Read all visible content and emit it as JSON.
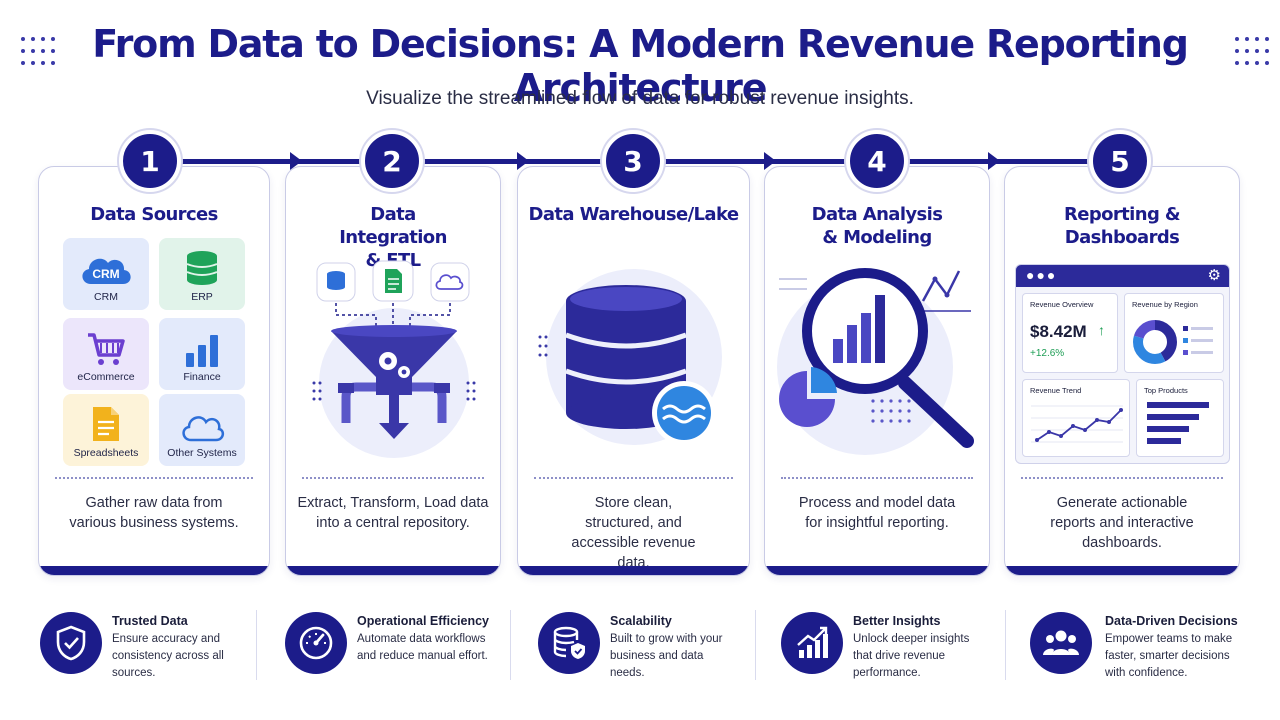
{
  "header": {
    "title": "From Data to Decisions: A Modern Revenue Reporting Architecture",
    "subtitle": "Visualize the streamlined flow of data for robust revenue insights."
  },
  "steps": [
    {
      "number": "1",
      "title": "Data Sources",
      "description": "Gather raw data from various business systems."
    },
    {
      "number": "2",
      "title": "Data Integration & ETL",
      "description": "Extract, Transform, Load data into a central repository."
    },
    {
      "number": "3",
      "title": "Data Warehouse/Lake",
      "description": "Store clean, structured, and accessible revenue data."
    },
    {
      "number": "4",
      "title": "Data Analysis & Modeling",
      "description": "Process and model data for insightful reporting."
    },
    {
      "number": "5",
      "title": "Reporting & Dashboards",
      "description": "Generate actionable reports and interactive dashboards."
    }
  ],
  "sources": {
    "crm_icon_text": "CRM",
    "tiles": [
      {
        "label": "CRM",
        "icon": "crm-cloud-icon"
      },
      {
        "label": "ERP",
        "icon": "database-icon"
      },
      {
        "label": "eCommerce",
        "icon": "shopping-cart-icon"
      },
      {
        "label": "Finance",
        "icon": "bar-chart-icon"
      },
      {
        "label": "Spreadsheets",
        "icon": "document-icon"
      },
      {
        "label": "Other Systems",
        "icon": "cloud-icon"
      }
    ]
  },
  "dashboard": {
    "revenue_overview": "Revenue Overview",
    "revenue_value": "$8.42M",
    "revenue_change": "+12.6%",
    "revenue_by_region": "Revenue by Region",
    "revenue_trend": "Revenue Trend",
    "top_products": "Top Products"
  },
  "benefits": [
    {
      "title": "Trusted Data",
      "description": "Ensure accuracy and consistency across all sources.",
      "icon": "shield-check-icon"
    },
    {
      "title": "Operational Efficiency",
      "description": "Automate data workflows and reduce manual effort.",
      "icon": "gauge-icon"
    },
    {
      "title": "Scalability",
      "description": "Built to grow with your business and data needs.",
      "icon": "database-shield-icon"
    },
    {
      "title": "Better Insights",
      "description": "Unlock deeper insights that drive revenue performance.",
      "icon": "growth-chart-icon"
    },
    {
      "title": "Data-Driven Decisions",
      "description": "Empower teams to make faster, smarter decisions with confidence.",
      "icon": "team-icon"
    }
  ],
  "colors": {
    "primary": "#1c1c8a",
    "accent": "#5a4fcf",
    "positive": "#1e9e55",
    "soft_bg": "#eceefb"
  }
}
